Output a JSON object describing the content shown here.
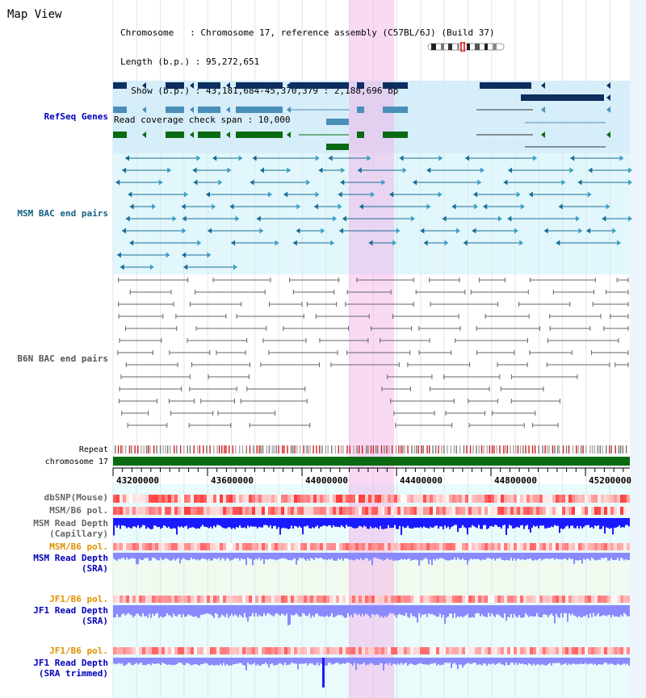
{
  "page": {
    "title": "Map View"
  },
  "header": {
    "chromosome_line": "Chromosome   : Chromosome 17, reference assembly (C57BL/6J) (Build 37)",
    "length_line": "Length (b.p.) : 95,272,651",
    "show_line": "  Show (b.p.) : 43,181,684-45,370,379 : 2,188,696 bp",
    "coverage_line": "Read coverage check span : 10,000"
  },
  "tracks": {
    "refseq": "RefSeq Genes",
    "msm_bac": "MSM BAC end pairs",
    "b6n_bac": "B6N BAC end pairs",
    "repeat": "Repeat",
    "chromosome": "chromosome 17",
    "dbsnp": "dbSNP(Mouse)",
    "msm_b6_pol": "MSM/B6 pol.",
    "msm_depth_cap_1": "MSM Read Depth",
    "msm_depth_cap_2": "(Capillary)",
    "msm_b6_pol_2": "MSM/B6 pol.",
    "msm_depth_sra_1": "MSM Read Depth",
    "msm_depth_sra_2": "(SRA)",
    "jf1_b6_pol": "JF1/B6 pol.",
    "jf1_depth_sra_1": "JF1 Read Depth",
    "jf1_depth_sra_2": "(SRA)",
    "jf1_b6_pol_2": "JF1/B6 pol.",
    "jf1_depth_trim_1": "JF1 Read Depth",
    "jf1_depth_trim_2": "(SRA trimmed)"
  },
  "axis": {
    "ticks": [
      "43200000",
      "43600000",
      "44000000",
      "44400000",
      "44800000",
      "45200000"
    ]
  },
  "colors": {
    "refseq_bg": "#d6eef9",
    "msm_bg": "#e1f7fb",
    "sra_bg": "#eefaf0",
    "highlight": "#f7c0ec",
    "gene_navy": "#0d2e5f",
    "gene_steel": "#4a8fb8",
    "gene_green": "#0a6a12",
    "msm_pair": "#1b6d96",
    "b6n_pair": "#666666",
    "chrom_green": "#0a6a12",
    "pol_red": "#ff5050",
    "depth_blue": "#1a1aff",
    "depth_light": "#8a8aff",
    "label_blue": "#0000bb",
    "label_orange": "#e09000",
    "label_teal": "#125f82"
  }
}
